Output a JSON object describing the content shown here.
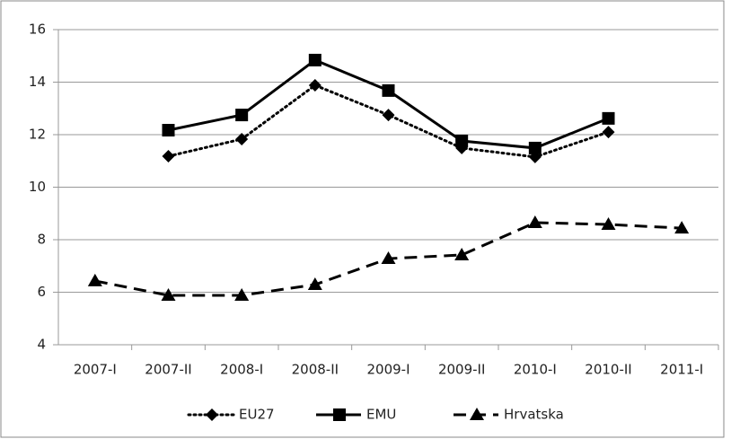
{
  "chart_data": {
    "type": "line",
    "categories": [
      "2007-I",
      "2007-II",
      "2008-I",
      "2008-II",
      "2009-I",
      "2009-II",
      "2010-I",
      "2010-II",
      "2011-I"
    ],
    "series": [
      {
        "name": "EU27",
        "color": "#000000",
        "dash": "dotted",
        "marker": "diamond",
        "values": [
          null,
          11.18,
          11.83,
          13.88,
          12.75,
          11.49,
          11.15,
          12.1,
          null
        ]
      },
      {
        "name": "EMU",
        "color": "#000000",
        "dash": "solid",
        "marker": "square",
        "values": [
          null,
          12.17,
          12.75,
          14.84,
          13.68,
          11.76,
          11.49,
          12.62,
          null
        ]
      },
      {
        "name": "Hrvatska",
        "color": "#000000",
        "dash": "dashed",
        "marker": "triangle",
        "values": [
          6.43,
          5.88,
          5.88,
          6.29,
          7.28,
          7.42,
          8.65,
          8.58,
          8.44
        ]
      }
    ],
    "ylim": [
      4,
      16
    ],
    "yticks": [
      4,
      6,
      8,
      10,
      12,
      14,
      16
    ],
    "grid": true,
    "legend": "bottom"
  }
}
